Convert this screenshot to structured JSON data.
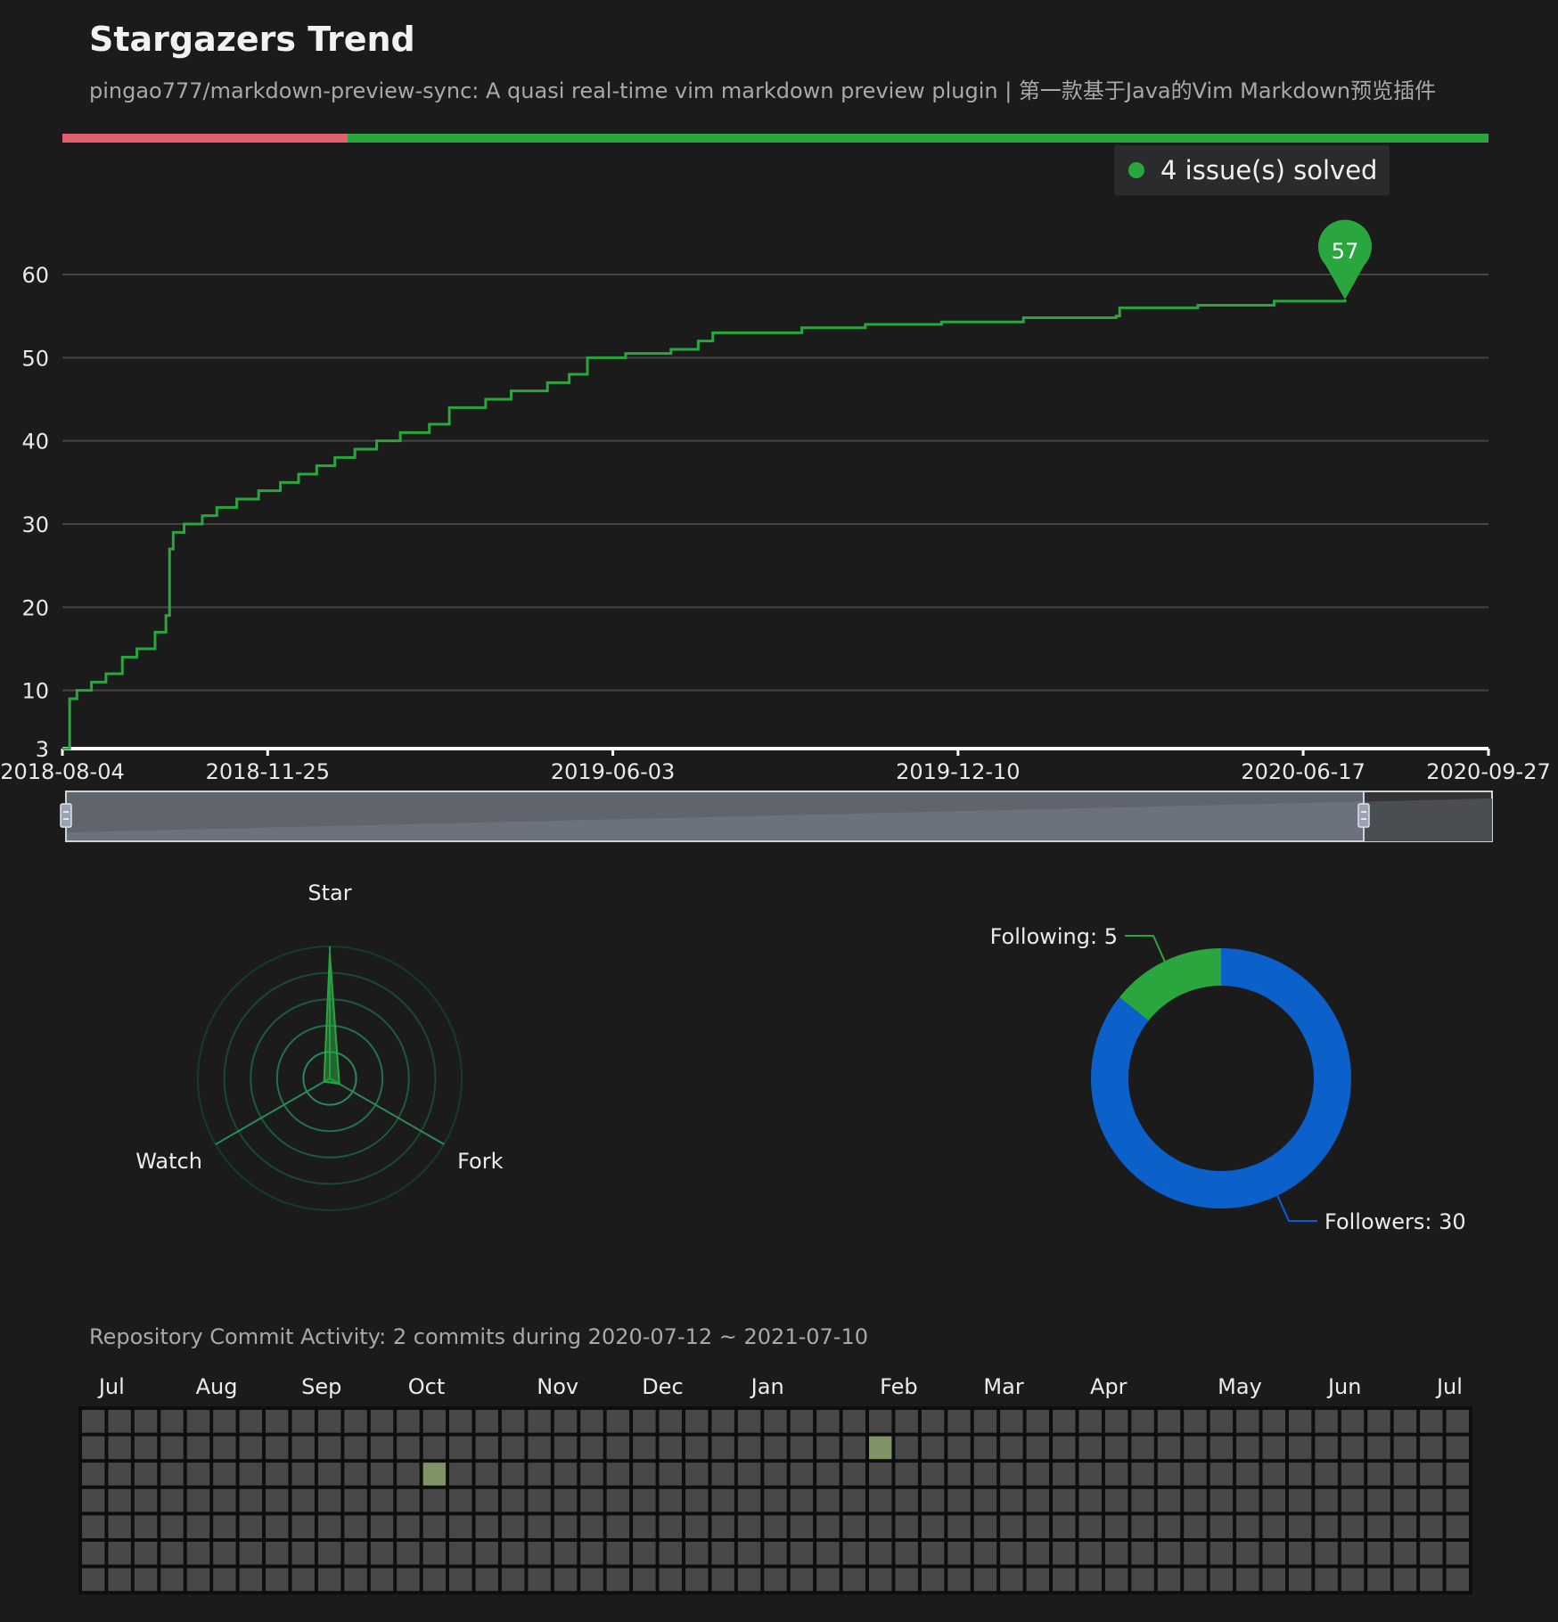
{
  "header": {
    "title": "Stargazers Trend",
    "subtitle": "pingao777/markdown-preview-sync: A quasi real-time vim markdown preview plugin | 第一款基于Java的Vim Markdown预览插件"
  },
  "issues": {
    "solved_label": "4 issue(s) solved",
    "solved_fraction": 0.8,
    "colors": {
      "open": "#e0606b",
      "solved": "#2aa63f"
    }
  },
  "chart_data": [
    {
      "type": "line",
      "title": "Stargazers Trend",
      "xlabel": "",
      "ylabel": "",
      "x_ticks": [
        "2018-08-04",
        "2018-11-25",
        "2019-06-03",
        "2019-12-10",
        "2020-06-17",
        "2020-09-27"
      ],
      "x_range": [
        "2018-08-04",
        "2020-09-27"
      ],
      "y_ticks": [
        "3",
        "10",
        "20",
        "30",
        "40",
        "50",
        "60"
      ],
      "ylim": [
        3,
        63
      ],
      "grid": true,
      "series": [
        {
          "name": "Stargazers",
          "color": "#2aa63f",
          "points": [
            [
              "2018-08-04",
              3
            ],
            [
              "2018-08-08",
              9
            ],
            [
              "2018-08-12",
              10
            ],
            [
              "2018-08-20",
              11
            ],
            [
              "2018-08-28",
              12
            ],
            [
              "2018-09-06",
              14
            ],
            [
              "2018-09-14",
              15
            ],
            [
              "2018-09-24",
              17
            ],
            [
              "2018-09-30",
              19
            ],
            [
              "2018-10-02",
              27
            ],
            [
              "2018-10-04",
              29
            ],
            [
              "2018-10-10",
              30
            ],
            [
              "2018-10-20",
              31
            ],
            [
              "2018-10-28",
              32
            ],
            [
              "2018-11-08",
              33
            ],
            [
              "2018-11-20",
              34
            ],
            [
              "2018-12-02",
              35
            ],
            [
              "2018-12-12",
              36
            ],
            [
              "2018-12-22",
              37
            ],
            [
              "2019-01-01",
              38
            ],
            [
              "2019-01-12",
              39
            ],
            [
              "2019-01-24",
              40
            ],
            [
              "2019-02-06",
              41
            ],
            [
              "2019-02-22",
              42
            ],
            [
              "2019-03-05",
              44
            ],
            [
              "2019-03-25",
              45
            ],
            [
              "2019-04-08",
              46
            ],
            [
              "2019-04-28",
              47
            ],
            [
              "2019-05-10",
              48
            ],
            [
              "2019-05-20",
              50
            ],
            [
              "2019-06-10",
              50.5
            ],
            [
              "2019-07-05",
              51
            ],
            [
              "2019-07-20",
              52
            ],
            [
              "2019-07-28",
              53
            ],
            [
              "2019-09-15",
              53.6
            ],
            [
              "2019-10-20",
              54
            ],
            [
              "2019-12-01",
              54.3
            ],
            [
              "2020-01-15",
              54.8
            ],
            [
              "2020-03-06",
              55
            ],
            [
              "2020-03-08",
              56
            ],
            [
              "2020-04-20",
              56.3
            ],
            [
              "2020-06-01",
              56.8
            ],
            [
              "2020-07-10",
              57
            ]
          ]
        }
      ],
      "annotations": [
        {
          "label": "57",
          "x": "2020-07-10",
          "y": 57,
          "color": "#2aa63f"
        }
      ],
      "zoom_slider": {
        "start": 0,
        "end": 0.91
      }
    },
    {
      "type": "radar",
      "indicators": [
        "Star",
        "Fork",
        "Watch"
      ],
      "values": [
        57,
        5,
        3
      ],
      "max": 60,
      "color": "#2aa63f"
    },
    {
      "type": "pie",
      "donut": true,
      "labels": [
        "Followers: 30",
        "Following: 5"
      ],
      "categories": [
        "Followers",
        "Following"
      ],
      "values": [
        30,
        5
      ],
      "colors": [
        "#0b60c9",
        "#2aa63f"
      ]
    },
    {
      "type": "heatmap",
      "title": "Repository Commit Activity: 2 commits during 2020-07-12 ~ 2021-07-10",
      "range": [
        "2020-07-12",
        "2021-07-10"
      ],
      "months": [
        "Jul",
        "Aug",
        "Sep",
        "Oct",
        "Nov",
        "Dec",
        "Jan",
        "Feb",
        "Mar",
        "Apr",
        "May",
        "Jun",
        "Jul"
      ],
      "month_start_weeks": [
        1,
        5,
        9,
        13,
        18,
        22,
        26,
        31,
        35,
        39,
        44,
        48,
        52
      ],
      "weeks": 53,
      "days": 7,
      "cells": [
        {
          "week": 13,
          "day": 2,
          "commits": 1
        },
        {
          "week": 30,
          "day": 1,
          "commits": 1
        }
      ],
      "total_commits": 2,
      "colors": {
        "empty": "#484848",
        "active": "#7f9466"
      }
    }
  ],
  "commit_activity": {
    "title": "Repository Commit Activity: 2 commits during 2020-07-12 ~ 2021-07-10"
  }
}
